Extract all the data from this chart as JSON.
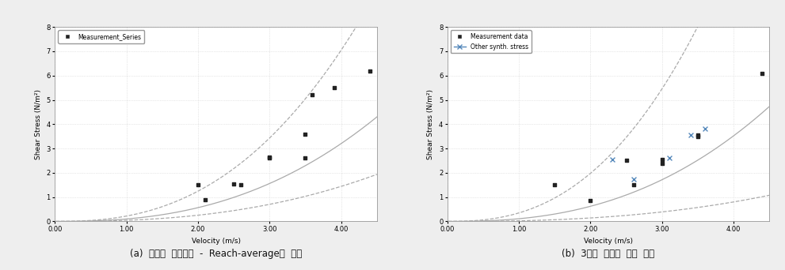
{
  "fig_width": 9.91,
  "fig_height": 3.42,
  "dpi": 100,
  "bg_color": "#eeeeee",
  "plot_bg_color": "#ffffff",
  "caption_a": "(a)  소류력  측정장치  -  Reach-average식  비교",
  "caption_b": "(b)  3가지  소류력  전체  비교",
  "xlim_a": [
    0.0,
    4.5
  ],
  "ylim_a": [
    0.0,
    8.0
  ],
  "xlim_b": [
    0.0,
    4.5
  ],
  "ylim_b": [
    0.0,
    8.0
  ],
  "xticks": [
    0.0,
    1.0,
    2.0,
    3.0,
    4.0
  ],
  "yticks_a": [
    0,
    1,
    2,
    3,
    4,
    5,
    6,
    7,
    8
  ],
  "yticks_b": [
    0,
    1,
    2,
    3,
    4,
    5,
    6,
    7,
    8
  ],
  "xlabel": "Velocity (m/s)",
  "ylabel_a": "Shear Stress (N/m²)",
  "ylabel_b": "Shear Stress (N/m²)",
  "legend_a_label": "Measurement_Series",
  "legend_b1_label": "Measurement data",
  "legend_b2_label": "Other synth. stress",
  "scatter_a_x": [
    2.0,
    2.1,
    2.5,
    2.6,
    3.0,
    3.0,
    3.5,
    3.5,
    3.6,
    3.9,
    4.4
  ],
  "scatter_a_y": [
    1.5,
    0.9,
    1.55,
    1.5,
    2.65,
    2.6,
    2.6,
    3.6,
    5.2,
    5.5,
    6.2
  ],
  "scatter_b1_x": [
    1.5,
    2.0,
    2.5,
    2.6,
    3.0,
    3.0,
    3.5,
    3.5,
    4.4
  ],
  "scatter_b1_y": [
    1.5,
    0.85,
    2.5,
    1.5,
    2.55,
    2.4,
    3.5,
    3.55,
    6.1
  ],
  "scatter_b2_x": [
    2.3,
    2.6,
    3.1,
    3.4,
    3.6
  ],
  "scatter_b2_y": [
    2.55,
    1.75,
    2.6,
    3.55,
    3.8
  ],
  "curve_color": "#aaaaaa",
  "grid_color": "#cccccc"
}
